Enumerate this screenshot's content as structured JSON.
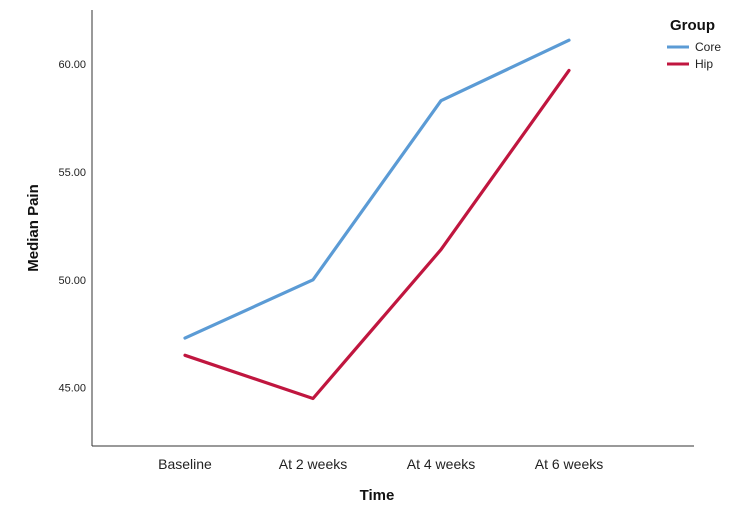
{
  "chart_data": {
    "type": "line",
    "categories": [
      "Baseline",
      "At 2 weeks",
      "At 4 weeks",
      "At 6 weeks"
    ],
    "series": [
      {
        "name": "Core",
        "values": [
          47.3,
          50.0,
          58.3,
          61.1
        ],
        "color": "#5b9bd5"
      },
      {
        "name": "Hip",
        "values": [
          46.5,
          44.5,
          51.4,
          59.7
        ],
        "color": "#c0163f"
      }
    ],
    "xlabel": "Time",
    "ylabel": "Median Pain",
    "ylim": [
      42.3,
      62.5
    ],
    "yticks": [
      45,
      50,
      55,
      60
    ],
    "ytick_labels": [
      "45.00",
      "50.00",
      "55.00",
      "60.00"
    ],
    "grid": false,
    "legend": {
      "title": "Group",
      "position": "top-right"
    }
  }
}
